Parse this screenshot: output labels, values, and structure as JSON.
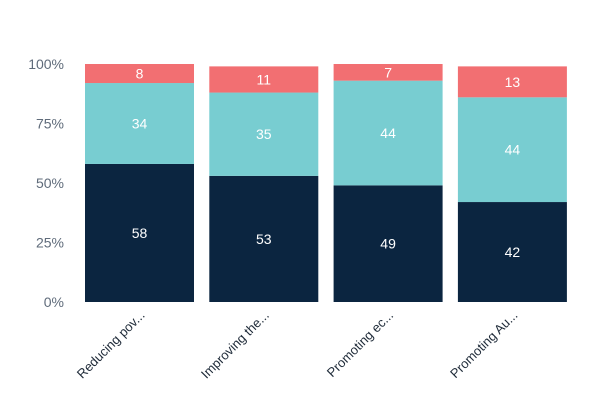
{
  "chart_data": {
    "type": "bar",
    "stacked": true,
    "percent": true,
    "categories": [
      "Reducing pov...",
      "Improving the...",
      "Promoting ec...",
      "Promoting Au..."
    ],
    "series": [
      {
        "values": [
          58,
          53,
          49,
          42
        ],
        "color": "#0b2540"
      },
      {
        "values": [
          34,
          35,
          44,
          44
        ],
        "color": "#78cdd1"
      },
      {
        "values": [
          8,
          11,
          7,
          13
        ],
        "color": "#f26f72"
      }
    ],
    "ylim": [
      0,
      100
    ],
    "yticks": [
      "0%",
      "25%",
      "50%",
      "75%",
      "100%"
    ],
    "ytick_values": [
      0,
      25,
      50,
      75,
      100
    ],
    "grid": false,
    "legend": "none",
    "title": "",
    "xlabel": "",
    "ylabel": ""
  }
}
